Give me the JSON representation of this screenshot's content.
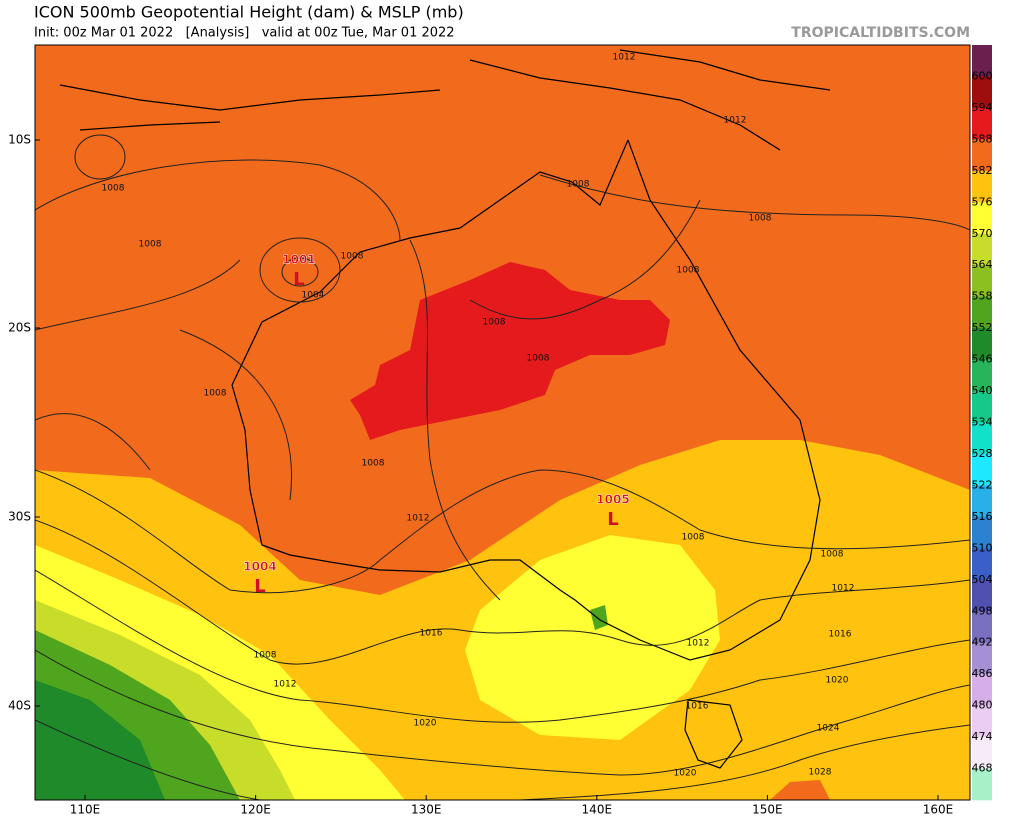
{
  "header": {
    "title": "ICON 500mb Geopotential Height (dam) & MSLP (mb)",
    "subtitle": "Init: 00z Mar 01 2022   [Analysis]   valid at 00z Tue, Mar 01 2022",
    "site": "TROPICALTIDBITS.COM"
  },
  "map": {
    "lat_labels": [
      "10S",
      "20S",
      "30S",
      "40S"
    ],
    "lon_labels": [
      "110E",
      "120E",
      "130E",
      "140E",
      "150E",
      "160E"
    ],
    "contour_labels": [
      1012,
      1012,
      1008,
      1008,
      1008,
      1008,
      1008,
      1004,
      1008,
      1008,
      1008,
      1008,
      1008,
      1012,
      1008,
      1008,
      1012,
      1016,
      1016,
      1008,
      1012,
      1012,
      1020,
      1016,
      1020,
      1024,
      1020,
      1028
    ],
    "lows": [
      {
        "symbol": "L",
        "pressure": 1001
      },
      {
        "symbol": "L",
        "pressure": 1004
      },
      {
        "symbol": "L",
        "pressure": 1005
      }
    ]
  },
  "colorbar": {
    "levels": [
      600,
      594,
      588,
      582,
      576,
      570,
      564,
      558,
      552,
      546,
      540,
      534,
      528,
      522,
      516,
      510,
      504,
      498,
      492,
      486,
      480,
      474,
      468
    ],
    "colors": [
      "#6b1f4f",
      "#a00d0d",
      "#e41a1c",
      "#f26b1c",
      "#ffc20e",
      "#ffff33",
      "#c8dc2a",
      "#8cc021",
      "#4fa51e",
      "#1f8a2a",
      "#27b45a",
      "#14c98a",
      "#12e0c8",
      "#1ee8ff",
      "#28b0e8",
      "#2b82d0",
      "#3a5fc8",
      "#5050b0",
      "#7a70c0",
      "#a590d6",
      "#d6aee8",
      "#eccdf2",
      "#f6ecf8",
      "#a8f0c8"
    ]
  }
}
